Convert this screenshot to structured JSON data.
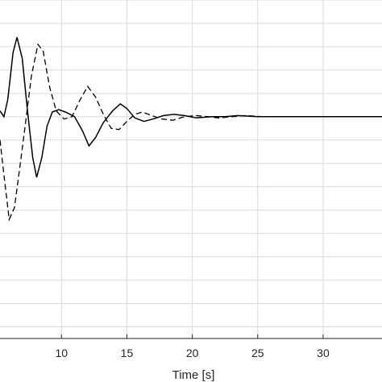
{
  "chart_data": {
    "type": "line",
    "title": "",
    "xlabel": "Time [s]",
    "ylabel": "",
    "x_visible_range": [
      5.3,
      34.5
    ],
    "y_visible_range": [
      -1.9,
      1.0
    ],
    "x_ticks": [
      10,
      15,
      20,
      25,
      30
    ],
    "y_grid_values": [
      -1.8,
      -1.6,
      -1.4,
      -1.2,
      -1.0,
      -0.8,
      -0.6,
      -0.4,
      -0.2,
      0,
      0.2,
      0.4,
      0.6,
      0.8,
      1.0
    ],
    "grid": true,
    "series": [
      {
        "style": "solid",
        "color": "#000000",
        "points": [
          [
            5.3,
            0.05
          ],
          [
            5.6,
            0.0
          ],
          [
            5.9,
            0.15
          ],
          [
            6.3,
            0.55
          ],
          [
            6.6,
            0.68
          ],
          [
            7.0,
            0.5
          ],
          [
            7.4,
            0.05
          ],
          [
            7.8,
            -0.35
          ],
          [
            8.1,
            -0.52
          ],
          [
            8.5,
            -0.35
          ],
          [
            8.9,
            -0.08
          ],
          [
            9.3,
            0.04
          ],
          [
            9.8,
            0.06
          ],
          [
            10.3,
            0.04
          ],
          [
            11.0,
            0.0
          ],
          [
            11.6,
            -0.12
          ],
          [
            12.1,
            -0.25
          ],
          [
            12.6,
            -0.18
          ],
          [
            13.2,
            -0.05
          ],
          [
            13.9,
            0.05
          ],
          [
            14.5,
            0.11
          ],
          [
            15.0,
            0.07
          ],
          [
            15.6,
            -0.01
          ],
          [
            16.3,
            -0.04
          ],
          [
            17.0,
            -0.02
          ],
          [
            17.8,
            0.01
          ],
          [
            18.6,
            0.02
          ],
          [
            19.4,
            0.01
          ],
          [
            20.3,
            -0.01
          ],
          [
            21.5,
            0.0
          ],
          [
            22.5,
            0.0
          ],
          [
            23.5,
            0.01
          ],
          [
            25.0,
            0.0
          ],
          [
            34.5,
            0.0
          ]
        ]
      },
      {
        "style": "dashed",
        "color": "#000000",
        "points": [
          [
            5.3,
            -0.2
          ],
          [
            5.6,
            -0.5
          ],
          [
            6.0,
            -0.88
          ],
          [
            6.4,
            -0.78
          ],
          [
            6.8,
            -0.45
          ],
          [
            7.2,
            -0.1
          ],
          [
            7.7,
            0.35
          ],
          [
            8.2,
            0.62
          ],
          [
            8.6,
            0.56
          ],
          [
            9.1,
            0.25
          ],
          [
            9.6,
            0.05
          ],
          [
            10.2,
            -0.02
          ],
          [
            10.8,
            0.0
          ],
          [
            11.4,
            0.14
          ],
          [
            12.0,
            0.26
          ],
          [
            12.6,
            0.17
          ],
          [
            13.2,
            0.02
          ],
          [
            13.8,
            -0.1
          ],
          [
            14.4,
            -0.11
          ],
          [
            15.0,
            -0.04
          ],
          [
            15.6,
            0.02
          ],
          [
            16.2,
            0.04
          ],
          [
            16.9,
            0.01
          ],
          [
            17.7,
            -0.02
          ],
          [
            18.5,
            -0.03
          ],
          [
            19.4,
            0.0
          ],
          [
            20.3,
            0.01
          ],
          [
            21.2,
            0.0
          ],
          [
            22.0,
            -0.01
          ],
          [
            23.0,
            0.0
          ],
          [
            24.0,
            0.01
          ],
          [
            25.5,
            0.0
          ],
          [
            34.5,
            0.0
          ]
        ]
      }
    ]
  }
}
